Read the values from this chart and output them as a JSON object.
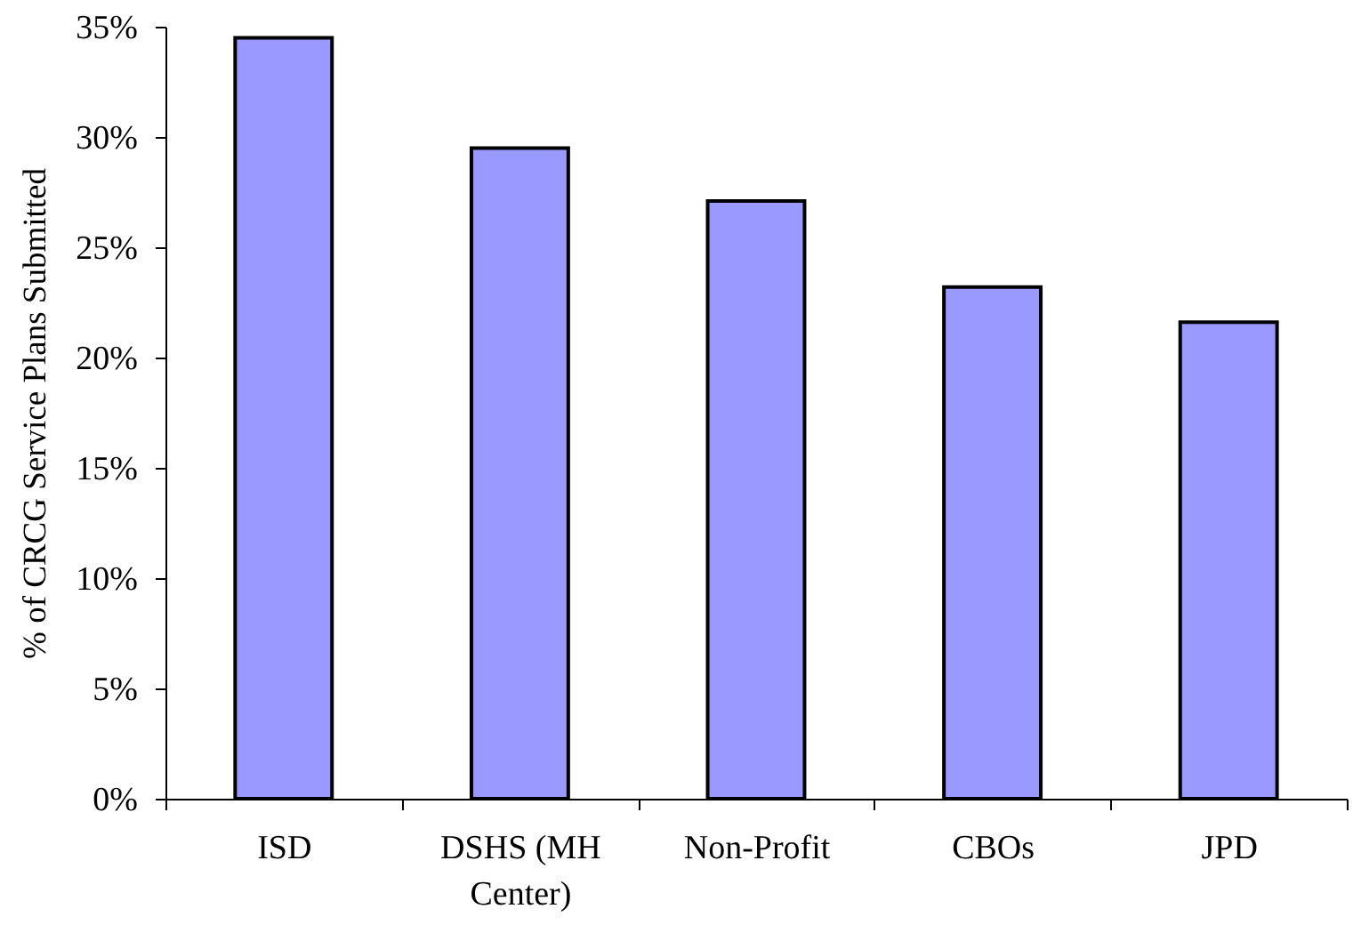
{
  "chart_data": {
    "type": "bar",
    "categories": [
      "ISD",
      "DSHS (MH Center)",
      "Non-Profit",
      "CBOs",
      "JPD"
    ],
    "values": [
      34.5,
      29.5,
      27.1,
      23.2,
      21.6
    ],
    "color": "#9999ff",
    "ylabel": "% of CRCG Service Plans Submitted",
    "ylim": [
      0,
      35
    ],
    "yticks": [
      {
        "value": 0,
        "label": "0%"
      },
      {
        "value": 5,
        "label": "5%"
      },
      {
        "value": 10,
        "label": "10%"
      },
      {
        "value": 15,
        "label": "15%"
      },
      {
        "value": 20,
        "label": "20%"
      },
      {
        "value": 25,
        "label": "25%"
      },
      {
        "value": 30,
        "label": "30%"
      },
      {
        "value": 35,
        "label": "35%"
      }
    ]
  }
}
